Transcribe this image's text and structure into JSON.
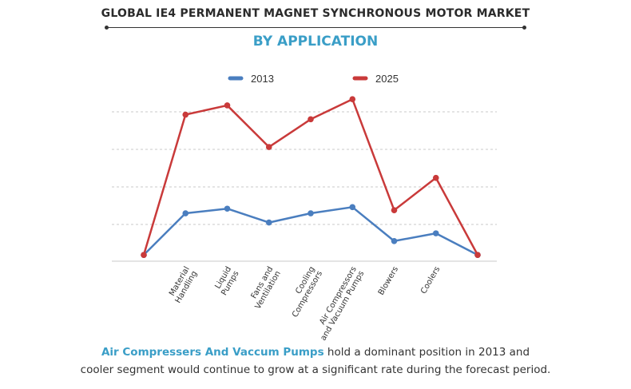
{
  "header": {
    "title": "GLOBAL IE4 PERMANENT MAGNET SYNCHRONOUS MOTOR MARKET",
    "subtitle": "BY APPLICATION"
  },
  "caption": {
    "highlight": "Air Compressers And Vaccum Pumps",
    "line1_rest": " hold a dominant position in 2013 and",
    "line2": "cooler segment would continue to grow at a significant rate during the forecast period."
  },
  "chart_data": {
    "type": "line",
    "title": "",
    "xlabel": "",
    "ylabel": "",
    "ylim": [
      0,
      100
    ],
    "grid": "horizontal dashed",
    "legend_position": "top",
    "categories": [
      "",
      "Material Handling",
      "Liquid Pumps",
      "Fans and Ventilation",
      "Cooling Compressors",
      "Air Compressors and Vacuum Pumps",
      "Blowers",
      "Coolers",
      ""
    ],
    "category_labels": [
      [],
      [
        "Material",
        "Handling"
      ],
      [
        "Liquid",
        "Pumps"
      ],
      [
        "Fans and",
        "Ventilation"
      ],
      [
        "Cooling",
        "Compressors"
      ],
      [
        "Air Compressors",
        "and Vacuum Pumps"
      ],
      [
        "Blowers"
      ],
      [
        "Coolers"
      ],
      []
    ],
    "series": [
      {
        "name": "2013",
        "color": "#4a7ebf",
        "values": [
          2,
          29,
          32,
          23,
          29,
          33,
          11,
          16,
          2
        ]
      },
      {
        "name": "2025",
        "color": "#c93a3a",
        "values": [
          2,
          93,
          99,
          72,
          90,
          103,
          31,
          52,
          2
        ]
      }
    ]
  }
}
